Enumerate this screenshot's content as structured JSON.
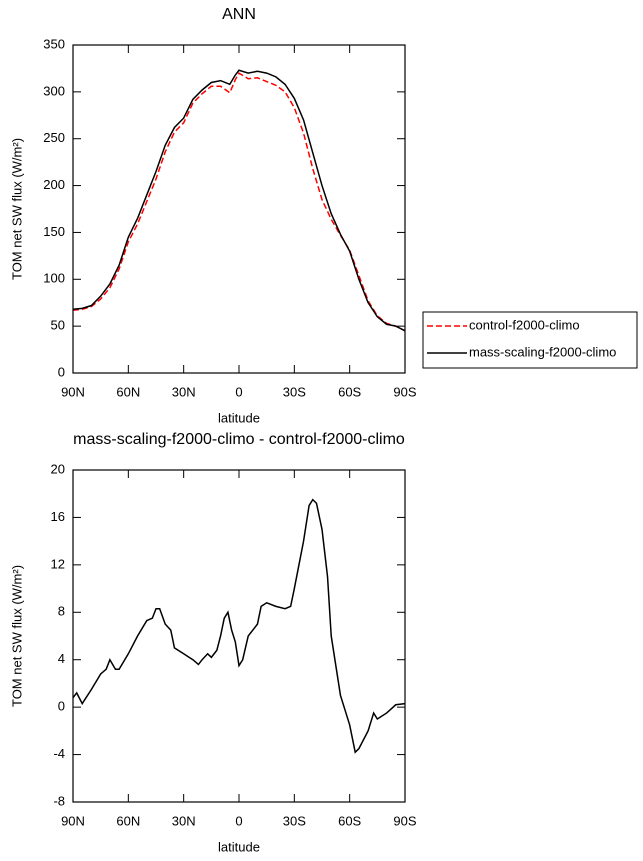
{
  "chart_data": [
    {
      "type": "line",
      "title": "ANN",
      "x_label": "latitude",
      "y_label": "TOM net SW flux (W/m²)",
      "x": [
        90,
        85,
        80,
        75,
        70,
        65,
        60,
        55,
        50,
        45,
        40,
        35,
        30,
        25,
        20,
        15,
        10,
        5,
        2,
        0,
        -5,
        -10,
        -15,
        -20,
        -25,
        -30,
        -35,
        -40,
        -45,
        -50,
        -55,
        -60,
        -65,
        -70,
        -75,
        -80,
        -85,
        -90
      ],
      "series": [
        {
          "name": "control-f2000-climo",
          "color": "#ff0000",
          "dash": true,
          "values": [
            67,
            68,
            71,
            79,
            91,
            111,
            140,
            159,
            183,
            207,
            236,
            257,
            267,
            288,
            298,
            306,
            306,
            299,
            313,
            320,
            314,
            315,
            311,
            307,
            300,
            283,
            256,
            218,
            185,
            164,
            147,
            131,
            104,
            77,
            61,
            53,
            50,
            45
          ]
        },
        {
          "name": "mass-scaling-f2000-climo",
          "color": "#000000",
          "dash": false,
          "values": [
            68,
            69,
            72,
            82,
            95,
            115,
            145,
            165,
            190,
            215,
            243,
            262,
            272,
            292,
            302,
            310,
            312,
            308,
            318,
            323,
            320,
            322,
            320,
            316,
            308,
            293,
            270,
            235,
            200,
            170,
            148,
            130,
            100,
            75,
            60,
            52,
            50,
            45
          ]
        }
      ],
      "xlim": [
        90,
        -90
      ],
      "xticks": [
        {
          "value": 90,
          "label": "90N"
        },
        {
          "value": 60,
          "label": "60N"
        },
        {
          "value": 30,
          "label": "30N"
        },
        0,
        {
          "value": -30,
          "label": "30S"
        },
        {
          "value": -60,
          "label": "60S"
        },
        {
          "value": -90,
          "label": "90S"
        }
      ],
      "ylim": [
        0,
        350
      ],
      "yticks": [
        0,
        50,
        100,
        150,
        200,
        250,
        300,
        350
      ],
      "legend": "right"
    },
    {
      "type": "line",
      "title": "mass-scaling-f2000-climo - control-f2000-climo",
      "x_label": "latitude",
      "y_label": "TOM net SW flux (W/m²)",
      "x": [
        90,
        88,
        85,
        80,
        75,
        72,
        70,
        67,
        65,
        60,
        55,
        50,
        47,
        45,
        43,
        40,
        37,
        35,
        30,
        27,
        25,
        22,
        20,
        17,
        15,
        12,
        10,
        8,
        6,
        4,
        2,
        0,
        -2,
        -5,
        -10,
        -12,
        -15,
        -20,
        -25,
        -28,
        -30,
        -35,
        -38,
        -40,
        -42,
        -45,
        -48,
        -50,
        -55,
        -58,
        -60,
        -63,
        -65,
        -70,
        -73,
        -75,
        -80,
        -85,
        -90
      ],
      "series": [
        {
          "color": "#000000",
          "dash": false,
          "values": [
            0.8,
            1.2,
            0.3,
            1.5,
            2.8,
            3.2,
            4,
            3.2,
            3.2,
            4.5,
            6,
            7.3,
            7.5,
            8.3,
            8.3,
            7,
            6.5,
            5,
            4.5,
            4.2,
            4,
            3.6,
            4,
            4.5,
            4.2,
            4.8,
            6,
            7.5,
            8,
            6.5,
            5.5,
            3.5,
            4,
            6,
            7,
            8.5,
            8.8,
            8.5,
            8.3,
            8.5,
            10,
            14,
            17,
            17.5,
            17.2,
            15,
            11,
            6,
            1,
            -0.5,
            -1.5,
            -3.8,
            -3.5,
            -2,
            -0.5,
            -1,
            -0.5,
            0.2,
            0.3
          ]
        }
      ],
      "xlim": [
        90,
        -90
      ],
      "xticks": [
        {
          "value": 90,
          "label": "90N"
        },
        {
          "value": 60,
          "label": "60N"
        },
        {
          "value": 30,
          "label": "30N"
        },
        0,
        {
          "value": -30,
          "label": "30S"
        },
        {
          "value": -60,
          "label": "60S"
        },
        {
          "value": -90,
          "label": "90S"
        }
      ],
      "ylim": [
        -8,
        20
      ],
      "yticks": [
        -8,
        -4,
        0,
        4,
        8,
        12,
        16,
        20
      ]
    }
  ]
}
